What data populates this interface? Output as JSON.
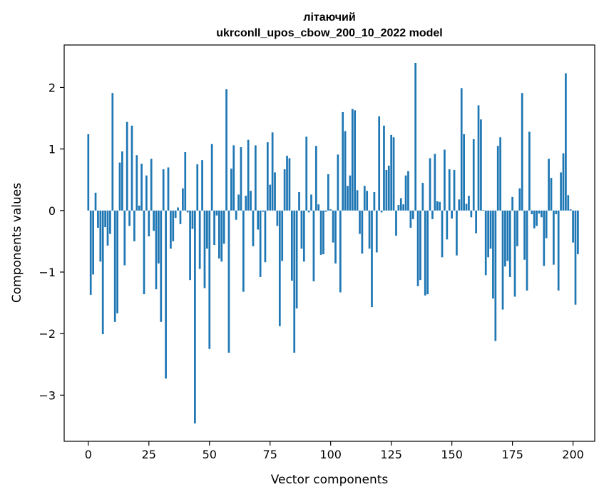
{
  "chart_data": {
    "type": "bar",
    "title": "літаючий",
    "subtitle": "ukrconll_upos_cbow_200_10_2022 model",
    "xlabel": "Vector components",
    "ylabel": "Components values",
    "xlim": [
      -9.95,
      208.95
    ],
    "ylim": [
      -3.75,
      2.69
    ],
    "xticks": [
      0,
      25,
      50,
      75,
      100,
      125,
      150,
      175,
      200
    ],
    "yticks": [
      -3,
      -2,
      -1,
      0,
      1,
      2
    ],
    "bar_color": "#1f77b4",
    "grid": false,
    "values": [
      1.24,
      -1.37,
      -1.04,
      0.29,
      -0.28,
      -0.83,
      -2.01,
      -0.27,
      -0.57,
      -0.38,
      1.91,
      -1.81,
      -1.67,
      0.78,
      0.96,
      -0.89,
      1.44,
      -0.25,
      1.38,
      -0.5,
      0.9,
      0.08,
      0.76,
      -1.36,
      0.57,
      -0.42,
      0.84,
      -0.33,
      -1.28,
      -0.86,
      -1.81,
      0.67,
      -2.73,
      0.7,
      -0.62,
      -0.5,
      -0.12,
      0.05,
      -0.22,
      0.36,
      0.95,
      -0.03,
      -1.13,
      -0.3,
      -3.46,
      0.75,
      -0.95,
      0.82,
      -1.26,
      -0.62,
      -2.25,
      1.08,
      -0.56,
      -0.08,
      -0.78,
      -0.83,
      -0.54,
      1.97,
      -2.31,
      0.68,
      1.06,
      -0.15,
      0.26,
      1.03,
      -1.32,
      0.24,
      1.15,
      0.32,
      -0.58,
      1.06,
      -0.31,
      -1.08,
      -0.02,
      -0.84,
      1.11,
      0.42,
      1.27,
      0.62,
      -0.25,
      -1.88,
      -0.82,
      0.67,
      0.89,
      0.85,
      -1.14,
      -2.31,
      -1.59,
      0.3,
      -0.62,
      -0.83,
      1.2,
      -0.03,
      0.26,
      -1.15,
      1.05,
      0.1,
      -0.72,
      -0.71,
      -0.02,
      0.59,
      0.02,
      -0.52,
      -0.86,
      0.91,
      -1.33,
      1.6,
      1.29,
      0.4,
      0.57,
      1.65,
      1.63,
      0.33,
      -0.38,
      -0.7,
      0.4,
      0.32,
      -0.62,
      -1.57,
      0.3,
      -0.68,
      1.53,
      -0.03,
      1.38,
      0.66,
      0.73,
      1.23,
      1.19,
      -0.41,
      0.09,
      0.2,
      0.1,
      0.57,
      0.64,
      -0.28,
      -0.14,
      2.4,
      -1.23,
      -1.13,
      0.45,
      -1.38,
      -1.36,
      0.85,
      -0.14,
      0.92,
      0.15,
      0.14,
      -0.76,
      0.99,
      -0.47,
      0.67,
      -0.13,
      0.66,
      -0.73,
      0.18,
      1.99,
      1.24,
      0.11,
      0.24,
      -0.11,
      1.16,
      -0.37,
      1.71,
      1.48,
      0.01,
      -1.05,
      -0.76,
      -0.62,
      -1.43,
      -2.12,
      1.05,
      1.19,
      -1.61,
      -0.91,
      -0.82,
      -1.08,
      0.22,
      -1.4,
      -0.58,
      0.36,
      1.91,
      -0.8,
      -1.3,
      1.28,
      -0.06,
      -0.29,
      -0.25,
      -0.05,
      -0.11,
      -0.9,
      -0.45,
      0.84,
      0.53,
      -0.88,
      -0.06,
      -1.3,
      0.62,
      0.93,
      2.23,
      0.25,
      0.02,
      -0.52,
      -1.53,
      -0.71
    ]
  }
}
